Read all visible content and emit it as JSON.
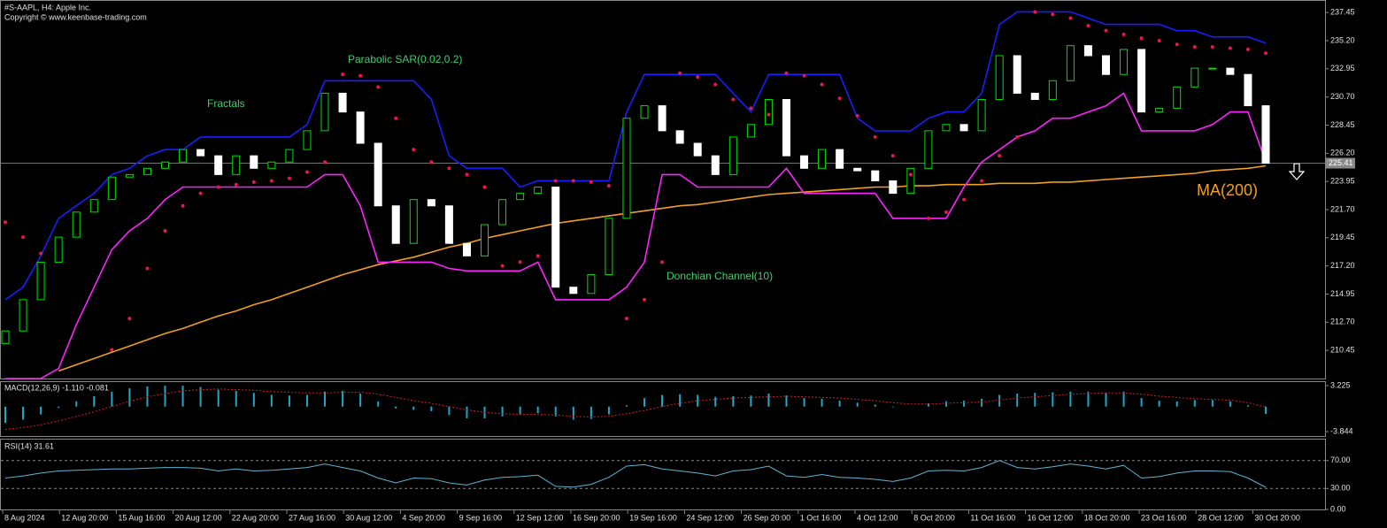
{
  "chart_data": [
    {
      "type": "candlestick",
      "title": "#S-AAPL, H4:  Apple Inc.",
      "subtitle": "Copyright © www.keenbase-trading.com",
      "fractals_label": "Fractals",
      "up_color": "#00e000",
      "down_color": "#ffffff",
      "open": [
        211,
        212,
        214.5,
        217.5,
        219.5,
        221.5,
        222.5,
        224.3,
        224.5,
        225,
        225.5,
        226.5,
        226,
        224.5,
        226,
        225,
        225.5,
        226.5,
        228,
        231,
        229.5,
        227,
        222,
        219,
        222.5,
        222,
        219,
        218,
        220.5,
        222.5,
        223,
        223.5,
        215.5,
        215,
        216.5,
        221,
        229,
        230,
        228,
        227,
        226,
        224.5,
        227.5,
        228.5,
        230.5,
        226,
        225,
        226.5,
        225,
        224.8,
        224,
        223,
        225,
        228,
        228.5,
        228,
        230.5,
        234,
        231,
        230.5,
        232,
        234.8,
        234,
        232.5,
        234.5,
        229.5,
        229.8,
        231.5,
        233,
        233,
        232.5,
        230
      ],
      "close": [
        212,
        214.5,
        217.5,
        219.5,
        221.5,
        222.5,
        224.3,
        224.5,
        225,
        225.5,
        226.5,
        226,
        224.5,
        226,
        225,
        225.5,
        226.5,
        228,
        231,
        229.5,
        227,
        222,
        219,
        222.5,
        222,
        219,
        218,
        220.5,
        222.5,
        223,
        223.5,
        215.5,
        215,
        216.5,
        221,
        229,
        230,
        228,
        227,
        226,
        224.5,
        227.5,
        228.5,
        230.5,
        226,
        225,
        226.5,
        225,
        224.8,
        224,
        223,
        225,
        228,
        228.5,
        228,
        230.5,
        234,
        231,
        230.5,
        232,
        234.8,
        234,
        232.5,
        234.5,
        229.5,
        229.8,
        231.5,
        233,
        233,
        232.5,
        230,
        225.4
      ],
      "ma": {
        "name": "MA(200)",
        "color": "#f0a020",
        "values": [
          null,
          null,
          null,
          208.8,
          209.3,
          209.8,
          210.3,
          210.8,
          211.3,
          211.8,
          212.2,
          212.7,
          213.2,
          213.6,
          214.1,
          214.5,
          215.0,
          215.5,
          216.0,
          216.5,
          216.9,
          217.3,
          217.6,
          217.9,
          218.3,
          218.7,
          219.0,
          219.4,
          219.7,
          220.0,
          220.3,
          220.6,
          220.8,
          221.0,
          221.2,
          221.4,
          221.6,
          221.8,
          222.0,
          222.1,
          222.3,
          222.5,
          222.7,
          222.9,
          223.0,
          223.1,
          223.2,
          223.3,
          223.4,
          223.5,
          223.5,
          223.6,
          223.6,
          223.7,
          223.7,
          223.7,
          223.8,
          223.8,
          223.8,
          223.9,
          223.9,
          224.0,
          224.1,
          224.2,
          224.3,
          224.4,
          224.5,
          224.6,
          224.8,
          224.9,
          225.0,
          225.2
        ]
      },
      "donchian": {
        "name": "Donchian Channel(10)",
        "upper_color": "#1c1cff",
        "lower_color": "#ff22ff",
        "upper": [
          214.5,
          215.5,
          218,
          221,
          222,
          223,
          224.5,
          225,
          226,
          226.5,
          226.5,
          227.5,
          227.5,
          227.5,
          227.5,
          227.5,
          227.5,
          228.5,
          232,
          232,
          232,
          232,
          232,
          232,
          230.5,
          226,
          225,
          225,
          225,
          223.5,
          224,
          224,
          224,
          224,
          224,
          229.5,
          232.5,
          232.5,
          232.5,
          232.5,
          232.5,
          231,
          229.5,
          232.5,
          232.5,
          232.5,
          232.5,
          232.5,
          229,
          228,
          228,
          228,
          229,
          229.5,
          229.5,
          231,
          236.5,
          237.5,
          237.5,
          237.5,
          237.5,
          237,
          236.5,
          236.5,
          236.5,
          236.5,
          236,
          236,
          235.5,
          235.5,
          235.5,
          235
        ],
        "lower": [
          208.2,
          208.2,
          208.2,
          209,
          212.5,
          215.5,
          218.5,
          220,
          221,
          222.5,
          223.5,
          223.5,
          223.5,
          223.5,
          223.5,
          223.5,
          223.5,
          223.5,
          224.5,
          224.5,
          222,
          217.5,
          217.5,
          217.5,
          217.5,
          217,
          216.8,
          216.8,
          216.8,
          216.8,
          217.5,
          214.5,
          214.5,
          214.5,
          214.5,
          215.5,
          217.5,
          224.5,
          224.5,
          223.5,
          223.5,
          223.5,
          223.5,
          223.5,
          225,
          223,
          223,
          223,
          223,
          223,
          221,
          221,
          221,
          221,
          223.5,
          225.5,
          226.5,
          227.5,
          228,
          229,
          229,
          229.5,
          230,
          231,
          228,
          228,
          228,
          228,
          228.5,
          229.5,
          229.5,
          225.5
        ]
      },
      "sar": {
        "name": "Parabolic SAR(0.02,0.2)",
        "color": "#e8174b",
        "values": [
          220.7,
          219.5,
          218.2,
          null,
          null,
          null,
          210.5,
          213,
          217,
          220,
          222,
          223,
          223.5,
          223.7,
          223.9,
          224,
          224.2,
          224.7,
          225.5,
          232.5,
          232.4,
          231.5,
          229,
          226.5,
          225.5,
          225,
          224.5,
          223.5,
          217.2,
          217.5,
          218,
          224,
          224,
          223.9,
          223.6,
          213,
          214.5,
          217.5,
          232.6,
          232.3,
          231.7,
          230.5,
          229.8,
          229.3,
          232.6,
          232.4,
          231.7,
          230.6,
          229.2,
          227.5,
          226,
          224.5,
          221,
          221.5,
          222.5,
          224,
          226,
          227.5,
          237.5,
          237.3,
          237,
          236.4,
          236,
          235.7,
          235.4,
          235.2,
          234.9,
          234.7,
          234.7,
          234.6,
          234.5,
          234.2
        ]
      },
      "last_price": 225.41,
      "ylim": [
        208.2,
        238.45
      ],
      "yticks": [
        237.45,
        {
          "value": 235.2,
          "label": "235.20"
        },
        232.95,
        {
          "value": 230.7,
          "label": "230.70"
        },
        228.45,
        {
          "value": 226.2,
          "label": "226.20"
        },
        223.95,
        {
          "value": 221.7,
          "label": "221.70"
        },
        219.45,
        {
          "value": 217.2,
          "label": "217.20"
        },
        214.95,
        {
          "value": 212.7,
          "label": "212.70"
        },
        210.45
      ]
    },
    {
      "type": "macd",
      "title": "MACD(12,26,9) -1.110 -0.081",
      "histogram": {
        "color": "#1fa8c8",
        "values": [
          -2.5,
          -2,
          -1.2,
          -0.2,
          0.8,
          1.6,
          2.3,
          2.8,
          3.1,
          3.2,
          3.2,
          3.0,
          2.6,
          2.4,
          2.1,
          1.8,
          1.7,
          1.8,
          2.3,
          2.4,
          2.0,
          0.8,
          -0.3,
          -0.5,
          -0.7,
          -1.3,
          -1.8,
          -1.8,
          -1.5,
          -1.2,
          -1.0,
          -1.5,
          -2.0,
          -1.9,
          -1.2,
          0.2,
          1.3,
          1.8,
          1.9,
          1.8,
          1.5,
          1.6,
          1.7,
          2.0,
          1.7,
          1.3,
          1.2,
          0.9,
          0.6,
          0.3,
          -0.1,
          0,
          0.5,
          0.8,
          0.9,
          1.2,
          1.8,
          2.0,
          2.1,
          2.2,
          2.3,
          2.3,
          2.1,
          2.3,
          1.3,
          0.9,
          0.8,
          1.0,
          1.0,
          0.8,
          0.2,
          -1.11
        ]
      },
      "signal": {
        "color": "#d42020",
        "values": [
          -3.5,
          -3.2,
          -2.8,
          -2.2,
          -1.5,
          -0.8,
          0,
          0.8,
          1.5,
          2.0,
          2.4,
          2.6,
          2.7,
          2.6,
          2.5,
          2.3,
          2.2,
          2.1,
          2.1,
          2.2,
          2.2,
          1.9,
          1.4,
          0.9,
          0.5,
          0,
          -0.5,
          -0.9,
          -1.1,
          -1.2,
          -1.2,
          -1.3,
          -1.5,
          -1.6,
          -1.5,
          -1.1,
          -0.6,
          0,
          0.5,
          0.9,
          1.1,
          1.3,
          1.4,
          1.5,
          1.6,
          1.5,
          1.4,
          1.3,
          1.1,
          0.9,
          0.6,
          0.4,
          0.4,
          0.5,
          0.6,
          0.7,
          1.0,
          1.3,
          1.5,
          1.7,
          1.9,
          2.0,
          2.1,
          2.1,
          1.9,
          1.6,
          1.4,
          1.2,
          1.1,
          1.0,
          0.6,
          -0.081
        ]
      },
      "ylim": [
        -4.52,
        3.9
      ],
      "yticks": [
        3.225,
        -3.844
      ]
    },
    {
      "type": "rsi",
      "title": "RSI(14) 31.61",
      "color": "#5fb4d2",
      "values": [
        45,
        48,
        52,
        55,
        56,
        57,
        58,
        58,
        59,
        60,
        60,
        59,
        55,
        58,
        55,
        56,
        58,
        60,
        65,
        60,
        55,
        45,
        38,
        45,
        44,
        38,
        35,
        42,
        46,
        47,
        49,
        33,
        32,
        36,
        46,
        62,
        64,
        58,
        55,
        52,
        48,
        55,
        57,
        62,
        48,
        46,
        50,
        46,
        45,
        43,
        40,
        45,
        55,
        56,
        55,
        60,
        70,
        60,
        58,
        61,
        65,
        62,
        58,
        63,
        45,
        47,
        52,
        55,
        55,
        54,
        45,
        31.61
      ],
      "ylim": [
        0,
        100
      ],
      "yticks": [
        {
          "value": 70,
          "label": "70.00"
        },
        {
          "value": 30,
          "label": "30.00"
        },
        {
          "value": 0,
          "label": "0.00"
        }
      ],
      "x_labels": [
        "8 Aug 2024",
        "12 Aug 20:00",
        "15 Aug 16:00",
        "20 Aug 12:00",
        "22 Aug 20:00",
        "27 Aug 16:00",
        "30 Aug 12:00",
        "4 Sep 20:00",
        "9 Sep 16:00",
        "12 Sep 12:00",
        "16 Sep 20:00",
        "19 Sep 16:00",
        "24 Sep 12:00",
        "26 Sep 20:00",
        "1 Oct 16:00",
        "4 Oct 12:00",
        "8 Oct 20:00",
        "11 Oct 16:00",
        "16 Oct 12:00",
        "18 Oct 20:00",
        "23 Oct 16:00",
        "28 Oct 12:00",
        "30 Oct 20:00"
      ]
    }
  ]
}
